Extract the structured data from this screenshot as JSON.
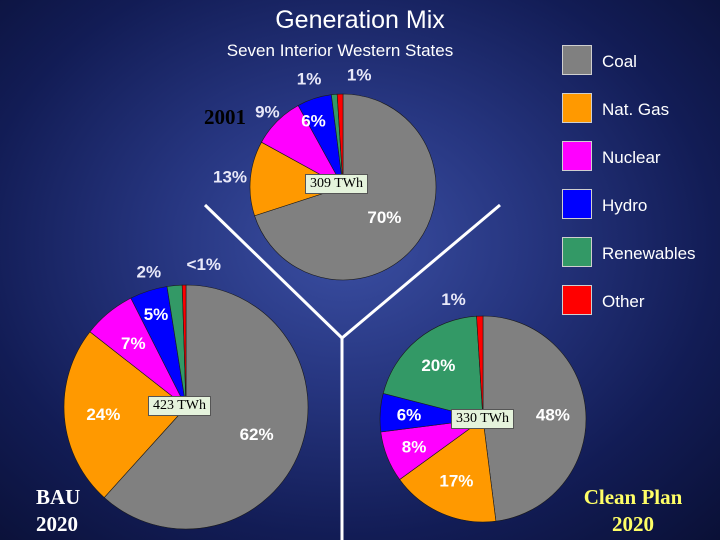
{
  "title": "Generation Mix",
  "subtitle": "Seven Interior Western States",
  "legend": [
    {
      "label": "Coal",
      "color": "#808080"
    },
    {
      "label": "Nat. Gas",
      "color": "#ff9900"
    },
    {
      "label": "Nuclear",
      "color": "#ff00ff"
    },
    {
      "label": "Hydro",
      "color": "#0000ff"
    },
    {
      "label": "Renewables",
      "color": "#339966"
    },
    {
      "label": "Other",
      "color": "#ff0000"
    }
  ],
  "chart_data": [
    {
      "type": "pie",
      "name": "2001",
      "total_label": "309 TWh",
      "categories": [
        "Coal",
        "Nat. Gas",
        "Nuclear",
        "Hydro",
        "Renewables",
        "Other"
      ],
      "values": [
        70,
        13,
        9,
        6,
        1,
        1
      ],
      "labels": [
        "70%",
        "13%",
        "9%",
        "6%",
        "1%",
        "1%"
      ]
    },
    {
      "type": "pie",
      "name": "BAU 2020",
      "total_label": "423 TWh",
      "categories": [
        "Coal",
        "Nat. Gas",
        "Nuclear",
        "Hydro",
        "Renewables",
        "Other"
      ],
      "values": [
        62,
        24,
        7,
        5,
        2,
        0.5
      ],
      "labels": [
        "62%",
        "24%",
        "7%",
        "5%",
        "2%",
        "<1%"
      ]
    },
    {
      "type": "pie",
      "name": "Clean Plan 2020",
      "total_label": "330 TWh",
      "categories": [
        "Coal",
        "Nat. Gas",
        "Nuclear",
        "Hydro",
        "Renewables",
        "Other"
      ],
      "values": [
        48,
        17,
        8,
        6,
        20,
        1
      ],
      "labels": [
        "48%",
        "17%",
        "8%",
        "6%",
        "20%",
        "1%"
      ]
    }
  ],
  "scenarios": {
    "s2001": {
      "line1": "2001"
    },
    "bau": {
      "line1": "BAU",
      "line2": "2020",
      "color": "#ffffff"
    },
    "clean": {
      "line1": "Clean Plan",
      "line2": "2020",
      "color": "#ffff66"
    }
  }
}
